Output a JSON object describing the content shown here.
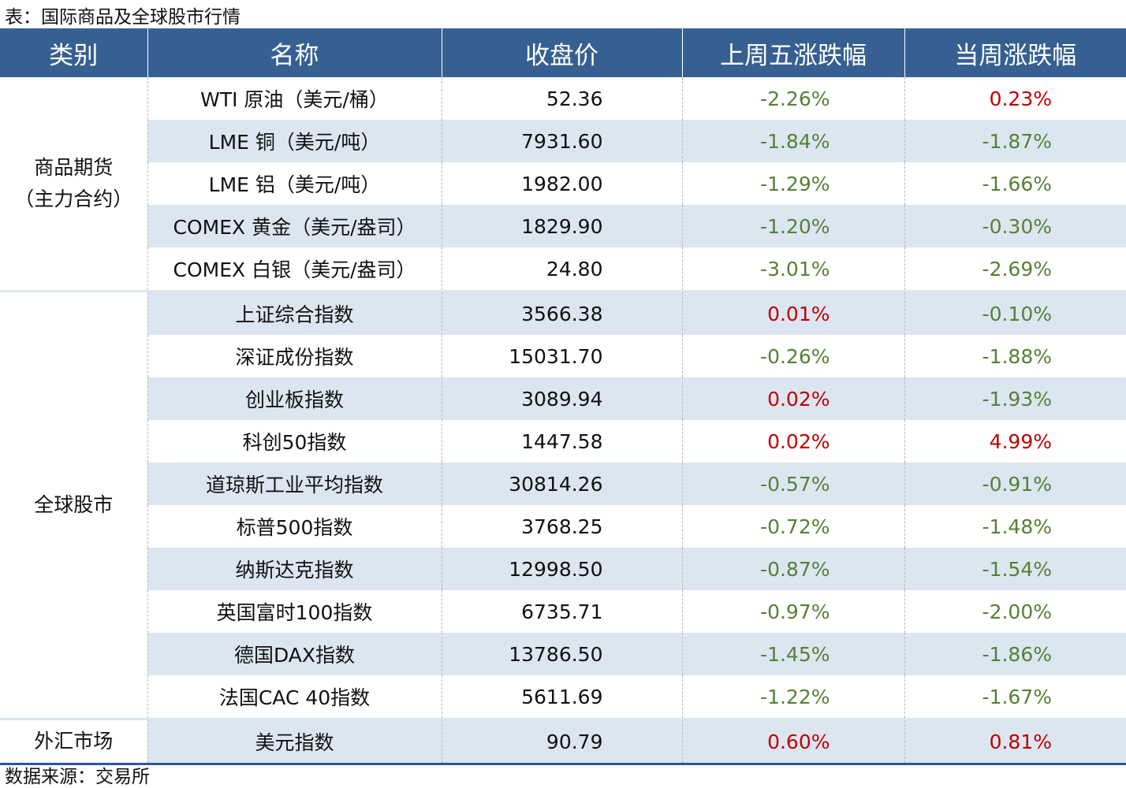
{
  "title": "表：国际商品及全球股市行情",
  "source": "数据来源：交易所",
  "colors": {
    "header_bg": "#366092",
    "shade": "#dce6f1",
    "up": "#c00000",
    "down": "#548235"
  },
  "headers": [
    "类别",
    "名称",
    "收盘价",
    "上周五涨跌幅",
    "当周涨跌幅"
  ],
  "groups": [
    {
      "category": "商品期货（主力合约）",
      "rows": [
        {
          "name": "WTI 原油（美元/桶）",
          "close": "52.36",
          "fri": "-2.26%",
          "week": "0.23%"
        },
        {
          "name": "LME 铜（美元/吨）",
          "close": "7931.60",
          "fri": "-1.84%",
          "week": "-1.87%"
        },
        {
          "name": "LME 铝（美元/吨）",
          "close": "1982.00",
          "fri": "-1.29%",
          "week": "-1.66%"
        },
        {
          "name": "COMEX 黄金（美元/盎司）",
          "close": "1829.90",
          "fri": "-1.20%",
          "week": "-0.30%"
        },
        {
          "name": "COMEX 白银（美元/盎司）",
          "close": "24.80",
          "fri": "-3.01%",
          "week": "-2.69%"
        }
      ]
    },
    {
      "category": "全球股市",
      "rows": [
        {
          "name": "上证综合指数",
          "close": "3566.38",
          "fri": "0.01%",
          "week": "-0.10%"
        },
        {
          "name": "深证成份指数",
          "close": "15031.70",
          "fri": "-0.26%",
          "week": "-1.88%"
        },
        {
          "name": "创业板指数",
          "close": "3089.94",
          "fri": "0.02%",
          "week": "-1.93%"
        },
        {
          "name": "科创50指数",
          "close": "1447.58",
          "fri": "0.02%",
          "week": "4.99%"
        },
        {
          "name": "道琼斯工业平均指数",
          "close": "30814.26",
          "fri": "-0.57%",
          "week": "-0.91%"
        },
        {
          "name": "标普500指数",
          "close": "3768.25",
          "fri": "-0.72%",
          "week": "-1.48%"
        },
        {
          "name": "纳斯达克指数",
          "close": "12998.50",
          "fri": "-0.87%",
          "week": "-1.54%"
        },
        {
          "name": "英国富时100指数",
          "close": "6735.71",
          "fri": "-0.97%",
          "week": "-2.00%"
        },
        {
          "name": "德国DAX指数",
          "close": "13786.50",
          "fri": "-1.45%",
          "week": "-1.86%"
        },
        {
          "name": "法国CAC 40指数",
          "close": "5611.69",
          "fri": "-1.22%",
          "week": "-1.67%"
        }
      ]
    },
    {
      "category": "外汇市场",
      "rows": [
        {
          "name": "美元指数",
          "close": "90.79",
          "fri": "0.60%",
          "week": "0.81%"
        }
      ]
    }
  ]
}
